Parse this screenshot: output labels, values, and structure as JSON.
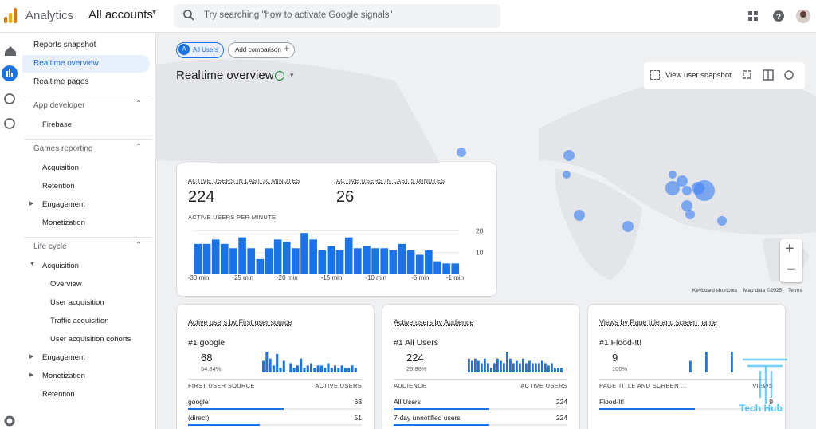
{
  "header": {
    "app": "Analytics",
    "account": "All accounts",
    "search": "Try searching \"how to activate Google signals\""
  },
  "sidebar": {
    "top": [
      "Reports snapshot",
      "Realtime overview",
      "Realtime pages"
    ],
    "sections": [
      {
        "title": "App developer",
        "items": [
          "Firebase"
        ]
      },
      {
        "title": "Games reporting",
        "items": [
          "Acquisition",
          "Retention",
          "Engagement",
          "Monetization"
        ]
      },
      {
        "title": "Life cycle",
        "items": [
          "Acquisition",
          "Overview",
          "User acquisition",
          "Traffic acquisition",
          "User acquisition cohorts",
          "Engagement",
          "Monetization",
          "Retention"
        ]
      }
    ]
  },
  "toolbar": {
    "chip": "All Users",
    "chip_badge": "A",
    "compare": "Add comparison",
    "title": "Realtime overview",
    "snapshot": "View user snapshot"
  },
  "map": {
    "footer": [
      "Keyboard shortcuts",
      "Map data ©2025",
      "Terms"
    ]
  },
  "summary": {
    "metrics": [
      {
        "label": "ACTIVE USERS IN LAST 30 MINUTES",
        "value": 224
      },
      {
        "label": "ACTIVE USERS IN LAST 5 MINUTES",
        "value": 26
      }
    ],
    "chart_data": {
      "type": "bar",
      "title": "ACTIVE USERS PER MINUTE",
      "color": "#1a73e8",
      "values": [
        14,
        14,
        16,
        14,
        12,
        17,
        12,
        7,
        12,
        16,
        15,
        12,
        19,
        16,
        11,
        13,
        11,
        17,
        12,
        13,
        12,
        12,
        11,
        14,
        11,
        9,
        11,
        6,
        5,
        5
      ],
      "xlabels": [
        "-30 min",
        "-25 min",
        "-20 min",
        "-15 min",
        "-10 min",
        "-5 min",
        "-1 min"
      ],
      "ylim": [
        0,
        22
      ],
      "yticks": [
        10,
        20
      ]
    }
  },
  "cards": [
    {
      "title": "Active users by First user source",
      "top": "#1 google",
      "value": 68,
      "share": "54.84%",
      "columns": [
        "FIRST USER SOURCE",
        "ACTIVE USERS"
      ],
      "rows": [
        [
          "google",
          68
        ],
        [
          "(direct)",
          51
        ]
      ],
      "spark": [
        5,
        9,
        6,
        3,
        8,
        2,
        5,
        0,
        4,
        2,
        3,
        6,
        2,
        3,
        4,
        2,
        3,
        3,
        2,
        4,
        2,
        3,
        2,
        3,
        2,
        2,
        3,
        2
      ]
    },
    {
      "title": "Active users by Audience",
      "top": "#1 All Users",
      "value": 224,
      "share": "26.86%",
      "columns": [
        "AUDIENCE",
        "ACTIVE USERS"
      ],
      "rows": [
        [
          "All Users",
          224
        ],
        [
          "7-day unnotified users",
          224
        ]
      ],
      "spark": [
        6,
        5,
        6,
        5,
        4,
        6,
        4,
        2,
        4,
        6,
        5,
        4,
        9,
        6,
        4,
        5,
        4,
        6,
        4,
        5,
        4,
        4,
        4,
        5,
        4,
        3,
        4,
        2,
        2,
        2
      ]
    },
    {
      "title": "Views by Page title and screen name",
      "top": "#1 Flood-It!",
      "value": 9,
      "share": "100%",
      "columns": [
        "PAGE TITLE AND SCREEN ...",
        "VIEWS"
      ],
      "rows": [
        [
          "Flood-It!",
          9
        ]
      ],
      "spark": [
        0,
        0,
        0,
        0,
        0,
        5,
        0,
        0,
        0,
        0,
        9,
        0,
        0,
        0,
        0,
        0,
        0,
        0,
        9,
        0,
        0,
        0,
        0,
        0,
        0,
        0,
        0,
        0,
        0,
        0
      ]
    }
  ],
  "watermark": "Tech Hub"
}
